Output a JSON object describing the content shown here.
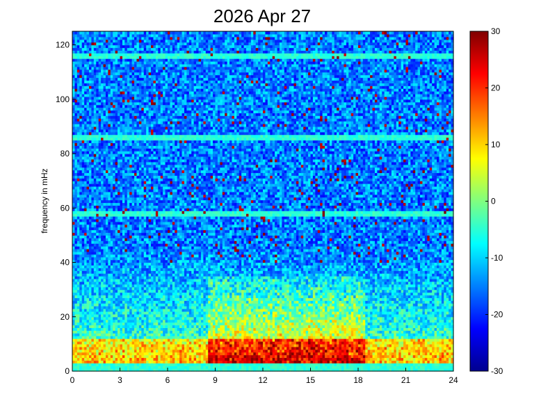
{
  "chart_data": {
    "type": "heatmap",
    "title": "2026 Apr 27",
    "xlabel": "",
    "ylabel": "frequency in mHz",
    "xlim": [
      0,
      24
    ],
    "ylim": [
      0,
      125
    ],
    "x_ticks": [
      0,
      3,
      6,
      9,
      12,
      15,
      18,
      21,
      24
    ],
    "x_tick_labels": [
      "0",
      "3",
      "6",
      "9",
      "12",
      "15",
      "18",
      "21",
      "24"
    ],
    "y_ticks": [
      0,
      20,
      40,
      60,
      80,
      100,
      120
    ],
    "y_tick_labels": [
      "0",
      "20",
      "40",
      "60",
      "80",
      "100",
      "120"
    ],
    "colorbar": {
      "limits": [
        -30,
        30
      ],
      "ticks": [
        -30,
        -20,
        -10,
        0,
        10,
        20,
        30
      ],
      "tick_labels": [
        "-30",
        "-20",
        "-10",
        "0",
        "10",
        "20",
        "30"
      ],
      "colormap": "jet"
    },
    "grid": false,
    "x_bins": 160,
    "y_bins": 125,
    "approx_features": {
      "background_level": -15,
      "high_power_band_freq_range": [
        0,
        12
      ],
      "high_power_level": 25,
      "enhanced_time_range": [
        8.5,
        18.5
      ],
      "enhanced_freq_range": [
        0,
        35
      ],
      "enhanced_level": 15,
      "horizontal_lines_freq": [
        1.5,
        58,
        86,
        116
      ],
      "horizontal_line_level": -5
    }
  }
}
